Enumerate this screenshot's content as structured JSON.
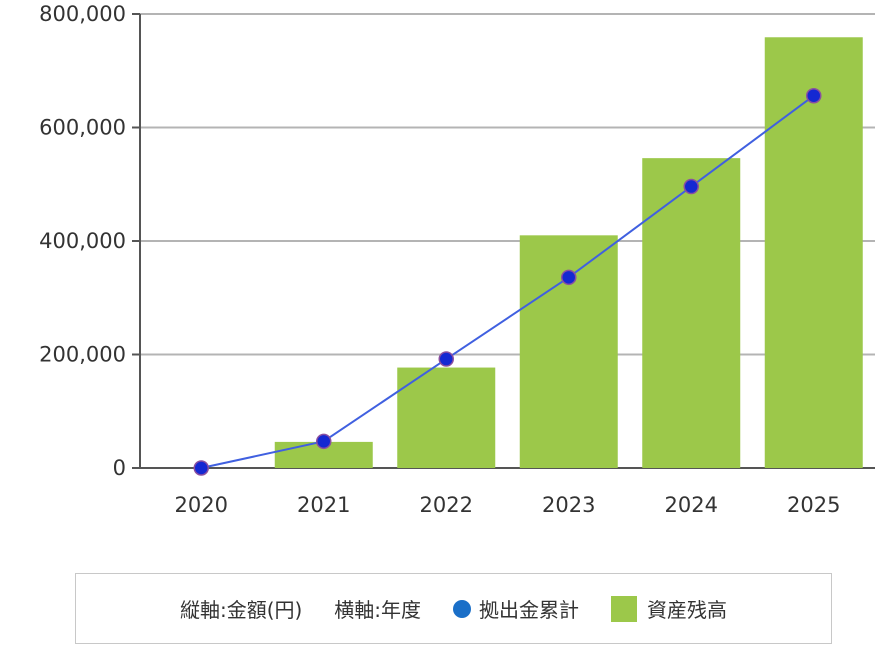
{
  "chart_data": {
    "type": "bar",
    "categories": [
      "2020",
      "2021",
      "2022",
      "2023",
      "2024",
      "2025"
    ],
    "series": [
      {
        "name": "資産残高",
        "type": "bar",
        "color": "#9cc84a",
        "values": [
          0,
          46000,
          177000,
          410000,
          546000,
          759000
        ]
      },
      {
        "name": "拠出金累計",
        "type": "line",
        "color": "#1428d2",
        "line_color": "#4060e0",
        "values": [
          0,
          47000,
          192000,
          336000,
          496000,
          656000
        ]
      }
    ],
    "y_ticks": [
      "0",
      "200,000",
      "400,000",
      "600,000",
      "800,000"
    ],
    "ylim": [
      0,
      800000
    ],
    "grid": true,
    "legend": {
      "position": "bottom",
      "y_axis_note": "縦軸:金額(円)",
      "x_axis_note": "横軸:年度",
      "line_label": "拠出金累計",
      "bar_label": "資産残高"
    }
  }
}
